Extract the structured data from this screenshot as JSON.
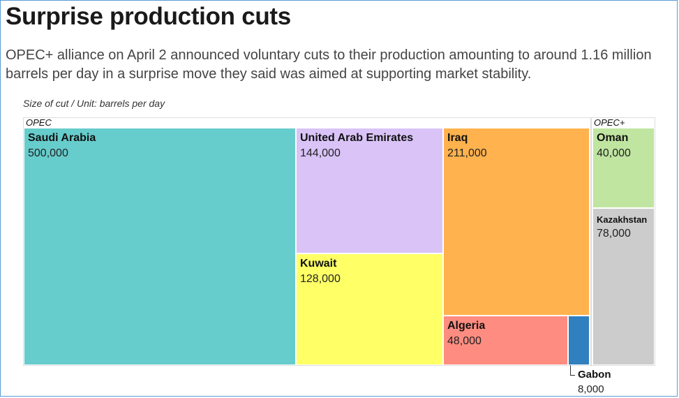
{
  "title": "Surprise production cuts",
  "subtitle": "OPEC+ alliance on April 2 announced voluntary cuts to their production amounting to around 1.16 million barrels per day in a surprise move they said was aimed at supporting market stability.",
  "unit_note": "Size of cut / Unit: barrels per day",
  "chart_data": {
    "type": "treemap",
    "title": "Surprise production cuts",
    "unit": "barrels per day",
    "groups": [
      {
        "name": "OPEC",
        "items": [
          {
            "name": "Saudi Arabia",
            "value": 500000,
            "label": "500,000",
            "color": "#66cccc"
          },
          {
            "name": "United Arab Emirates",
            "value": 144000,
            "label": "144,000",
            "color": "#d9c3f7"
          },
          {
            "name": "Kuwait",
            "value": 128000,
            "label": "128,000",
            "color": "#ffff66"
          },
          {
            "name": "Iraq",
            "value": 211000,
            "label": "211,000",
            "color": "#ffb24d"
          },
          {
            "name": "Algeria",
            "value": 48000,
            "label": "48,000",
            "color": "#ff8c80"
          },
          {
            "name": "Gabon",
            "value": 8000,
            "label": "8,000",
            "color": "#3080c0"
          }
        ]
      },
      {
        "name": "OPEC+",
        "items": [
          {
            "name": "Oman",
            "value": 40000,
            "label": "40,000",
            "color": "#bfe5a0"
          },
          {
            "name": "Kazakhstan",
            "value": 78000,
            "label": "78,000",
            "color": "#cccccc"
          }
        ]
      }
    ]
  }
}
